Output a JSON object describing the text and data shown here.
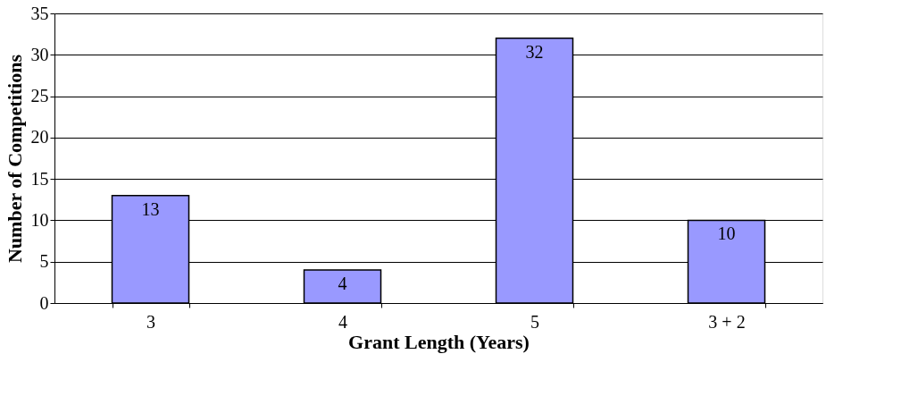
{
  "chart_data": {
    "type": "bar",
    "xlabel": "Grant Length (Years)",
    "ylabel": "Number of Competitions",
    "categories": [
      "3",
      "4",
      "5",
      "3 + 2"
    ],
    "values": [
      13,
      4,
      32,
      10
    ],
    "color": "#9999ff",
    "ylim": [
      0,
      35
    ],
    "yticks": [
      0,
      5,
      10,
      15,
      20,
      25,
      30,
      35
    ],
    "grid": "y",
    "data_labels": true
  }
}
